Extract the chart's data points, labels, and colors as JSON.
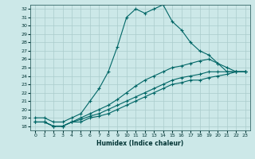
{
  "xlabel": "Humidex (Indice chaleur)",
  "ylabel": "",
  "bg_color": "#cce8e8",
  "line_color": "#006666",
  "grid_color": "#aacccc",
  "xlim": [
    -0.5,
    23.5
  ],
  "ylim": [
    17.5,
    32.5
  ],
  "xticks": [
    0,
    1,
    2,
    3,
    4,
    5,
    6,
    7,
    8,
    9,
    10,
    11,
    12,
    13,
    14,
    15,
    16,
    17,
    18,
    19,
    20,
    21,
    22,
    23
  ],
  "yticks": [
    18,
    19,
    20,
    21,
    22,
    23,
    24,
    25,
    26,
    27,
    28,
    29,
    30,
    31,
    32
  ],
  "lines": [
    {
      "x": [
        0,
        1,
        2,
        3,
        4,
        5,
        6,
        7,
        8,
        9,
        10,
        11,
        12,
        13,
        14,
        15,
        16,
        17,
        18,
        19,
        20,
        21,
        22,
        23
      ],
      "y": [
        19.0,
        19.0,
        18.5,
        18.5,
        19.0,
        19.5,
        21.0,
        22.5,
        24.5,
        27.5,
        31.0,
        32.0,
        31.5,
        32.0,
        32.5,
        30.5,
        29.5,
        28.0,
        27.0,
        26.5,
        25.5,
        24.5,
        24.5,
        24.5
      ]
    },
    {
      "x": [
        0,
        1,
        2,
        3,
        4,
        5,
        6,
        7,
        8,
        9,
        10,
        11,
        12,
        13,
        14,
        15,
        16,
        17,
        18,
        19,
        20,
        21,
        22,
        23
      ],
      "y": [
        18.5,
        18.5,
        18.0,
        18.0,
        18.5,
        19.0,
        19.5,
        20.0,
        20.5,
        21.2,
        22.0,
        22.8,
        23.5,
        24.0,
        24.5,
        25.0,
        25.2,
        25.5,
        25.8,
        26.0,
        25.5,
        25.0,
        24.5,
        24.5
      ]
    },
    {
      "x": [
        0,
        1,
        2,
        3,
        4,
        5,
        6,
        7,
        8,
        9,
        10,
        11,
        12,
        13,
        14,
        15,
        16,
        17,
        18,
        19,
        20,
        21,
        22,
        23
      ],
      "y": [
        18.5,
        18.5,
        18.0,
        18.0,
        18.5,
        18.8,
        19.2,
        19.5,
        20.0,
        20.5,
        21.0,
        21.5,
        22.0,
        22.5,
        23.0,
        23.5,
        23.8,
        24.0,
        24.2,
        24.5,
        24.5,
        24.5,
        24.5,
        24.5
      ]
    },
    {
      "x": [
        0,
        1,
        2,
        3,
        4,
        5,
        6,
        7,
        8,
        9,
        10,
        11,
        12,
        13,
        14,
        15,
        16,
        17,
        18,
        19,
        20,
        21,
        22,
        23
      ],
      "y": [
        18.5,
        18.5,
        18.0,
        18.0,
        18.5,
        18.5,
        19.0,
        19.2,
        19.5,
        20.0,
        20.5,
        21.0,
        21.5,
        22.0,
        22.5,
        23.0,
        23.2,
        23.5,
        23.5,
        23.8,
        24.0,
        24.2,
        24.5,
        24.5
      ]
    }
  ]
}
